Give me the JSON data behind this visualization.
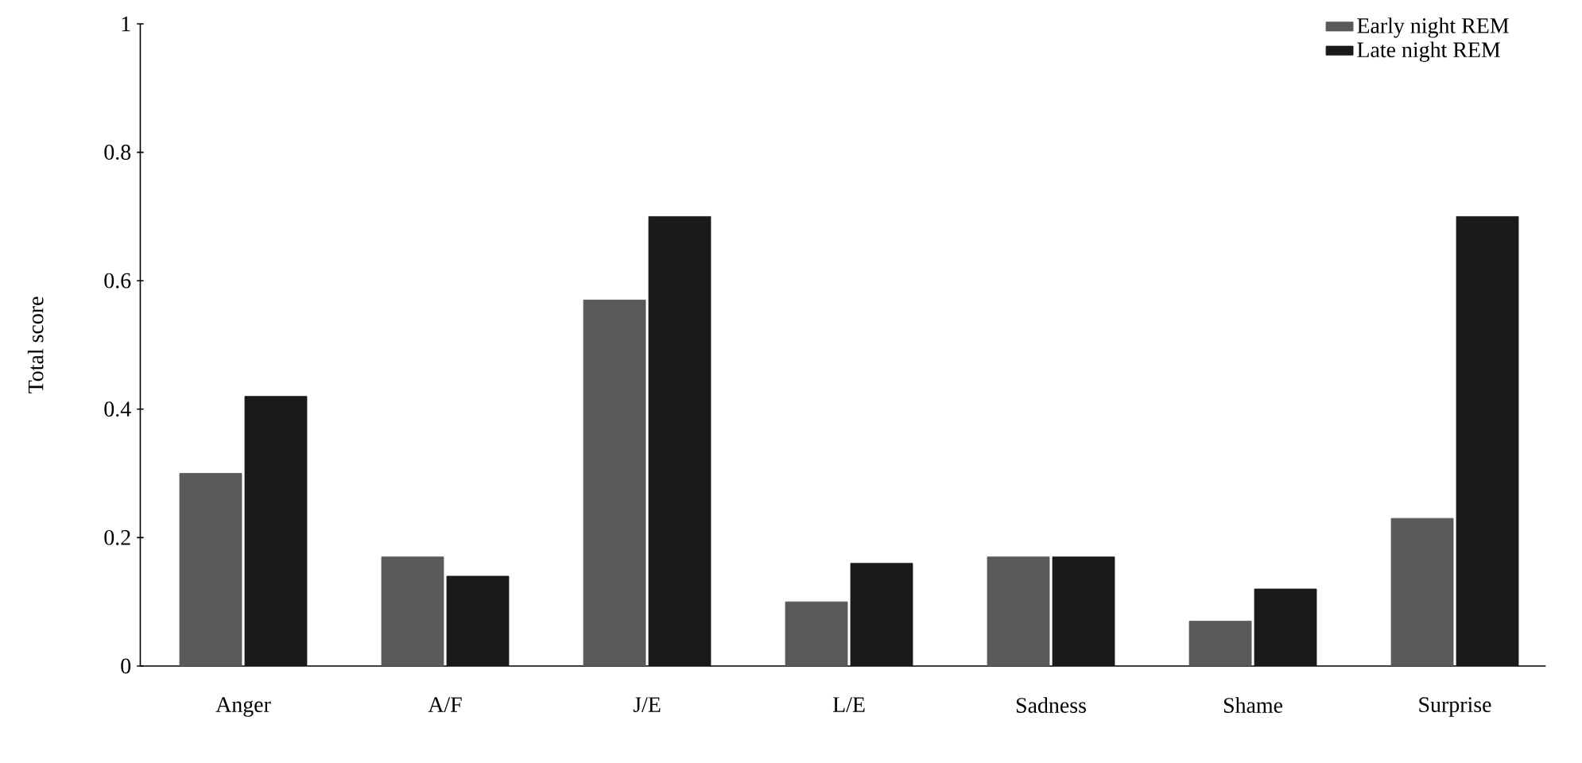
{
  "chart_data": {
    "type": "bar",
    "ylabel": "Total score",
    "categories": [
      "Anger",
      "A/F",
      "J/E",
      "L/E",
      "Sadness",
      "Shame",
      "Surprise"
    ],
    "series": [
      {
        "name": "Early night REM",
        "color": "#5a5a5a",
        "values": [
          0.3,
          0.17,
          0.57,
          0.1,
          0.17,
          0.07,
          0.23
        ]
      },
      {
        "name": "Late night REM",
        "color": "#1a1a1a",
        "values": [
          0.42,
          0.14,
          0.7,
          0.16,
          0.17,
          0.12,
          0.7
        ]
      }
    ],
    "ylim": [
      0,
      1
    ],
    "yticks": [
      0,
      0.2,
      0.4,
      0.6,
      0.8,
      1
    ],
    "legend": "top right",
    "grid": false
  }
}
